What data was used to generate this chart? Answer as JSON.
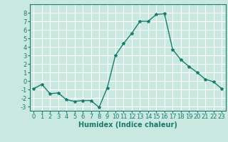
{
  "x": [
    0,
    1,
    2,
    3,
    4,
    5,
    6,
    7,
    8,
    9,
    10,
    11,
    12,
    13,
    14,
    15,
    16,
    17,
    18,
    19,
    20,
    21,
    22,
    23
  ],
  "y": [
    -0.9,
    -0.4,
    -1.5,
    -1.4,
    -2.2,
    -2.4,
    -2.3,
    -2.3,
    -3.1,
    -0.8,
    3.0,
    4.4,
    5.6,
    7.0,
    7.0,
    7.8,
    7.9,
    3.7,
    2.5,
    1.7,
    1.0,
    0.2,
    -0.1,
    -0.9
  ],
  "line_color": "#1a7a6e",
  "marker": "*",
  "marker_size": 3,
  "bg_color": "#c8e8e0",
  "grid_color": "#ffffff",
  "xlabel": "Humidex (Indice chaleur)",
  "ylim": [
    -3.5,
    9.0
  ],
  "xlim": [
    -0.5,
    23.5
  ],
  "yticks": [
    -3,
    -2,
    -1,
    0,
    1,
    2,
    3,
    4,
    5,
    6,
    7,
    8
  ],
  "xticks": [
    0,
    1,
    2,
    3,
    4,
    5,
    6,
    7,
    8,
    9,
    10,
    11,
    12,
    13,
    14,
    15,
    16,
    17,
    18,
    19,
    20,
    21,
    22,
    23
  ],
  "xlabel_fontsize": 7,
  "tick_fontsize": 6,
  "line_width": 1.0
}
